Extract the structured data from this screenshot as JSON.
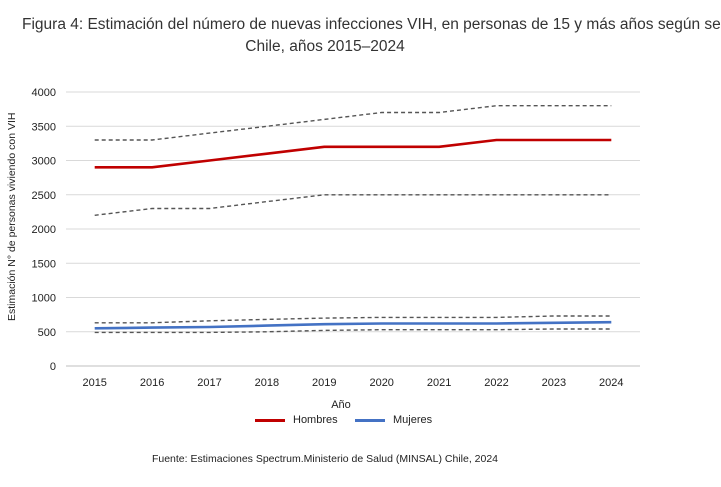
{
  "title": {
    "line1": "Figura 4: Estimación del número de nuevas infecciones VIH, en personas de 15 y más años según se",
    "line2": "Chile, años 2015–2024"
  },
  "source": "Fuente: Estimaciones Spectrum.Ministerio de Salud (MINSAL) Chile, 2024",
  "chart_data": {
    "type": "line",
    "x": [
      2015,
      2016,
      2017,
      2018,
      2019,
      2020,
      2021,
      2022,
      2023,
      2024
    ],
    "xlabel": "Año",
    "ylabel": "Estimación N° de personas viviendo con VIH",
    "ylim": [
      0,
      4000
    ],
    "yticks": [
      0,
      500,
      1000,
      1500,
      2000,
      2500,
      3000,
      3500,
      4000
    ],
    "grid": "horizontal",
    "legend_position": "bottom",
    "series": [
      {
        "name": "Hombres",
        "color": "#c00000",
        "style": "solid",
        "values": [
          2900,
          2900,
          3000,
          3100,
          3200,
          3200,
          3200,
          3300,
          3300,
          3300
        ]
      },
      {
        "name": "",
        "role": "upper bound Hombres",
        "color": "#555555",
        "style": "dashed",
        "values": [
          3300,
          3300,
          3400,
          3500,
          3600,
          3700,
          3700,
          3800,
          3800,
          3800
        ]
      },
      {
        "name": "",
        "role": "lower bound Hombres",
        "color": "#555555",
        "style": "dashed",
        "values": [
          2200,
          2300,
          2300,
          2400,
          2500,
          2500,
          2500,
          2500,
          2500,
          2500
        ]
      },
      {
        "name": "Mujeres",
        "color": "#4472c4",
        "style": "solid",
        "values": [
          550,
          560,
          570,
          590,
          610,
          620,
          620,
          620,
          630,
          640
        ]
      },
      {
        "name": "",
        "role": "upper bound Mujeres",
        "color": "#555555",
        "style": "dashed",
        "values": [
          630,
          630,
          660,
          680,
          700,
          710,
          710,
          710,
          730,
          730
        ]
      },
      {
        "name": "",
        "role": "lower bound Mujeres",
        "color": "#555555",
        "style": "dashed",
        "values": [
          490,
          490,
          490,
          500,
          520,
          530,
          530,
          530,
          540,
          540
        ]
      }
    ]
  }
}
